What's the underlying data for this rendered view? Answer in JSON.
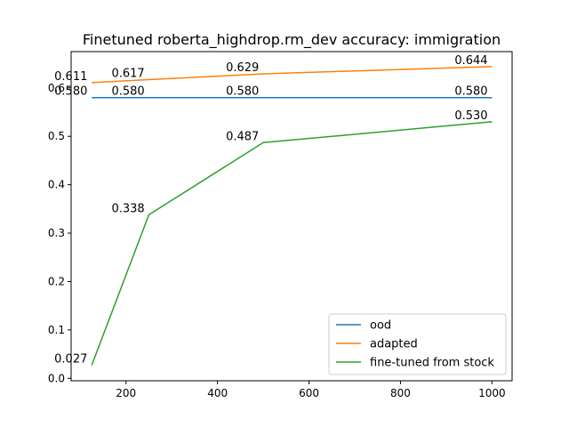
{
  "chart_data": {
    "type": "line",
    "title": "Finetuned roberta_highdrop.rm_dev accuracy: immigration",
    "xlabel": "",
    "ylabel": "",
    "xlim": [
      80,
      1044
    ],
    "ylim": [
      -0.005,
      0.675
    ],
    "x_ticks": [
      200,
      400,
      600,
      800,
      1000
    ],
    "y_ticks": [
      0.0,
      0.1,
      0.2,
      0.3,
      0.4,
      0.5,
      0.6
    ],
    "x_tick_labels": [
      "200",
      "400",
      "600",
      "800",
      "1000"
    ],
    "y_tick_labels": [
      "0.0",
      "0.1",
      "0.2",
      "0.3",
      "0.4",
      "0.5",
      "0.6"
    ],
    "grid": false,
    "legend_position": "lower-right",
    "x": [
      125,
      250,
      500,
      1000
    ],
    "series": [
      {
        "name": "ood",
        "color": "#1f77b4",
        "values": [
          0.58,
          0.58,
          0.58,
          0.58
        ],
        "labels": [
          "0.580",
          "0.580",
          "0.580",
          "0.580"
        ]
      },
      {
        "name": "adapted",
        "color": "#ff7f0e",
        "values": [
          0.611,
          0.617,
          0.629,
          0.644
        ],
        "labels": [
          "0.611",
          "0.617",
          "0.629",
          "0.644"
        ]
      },
      {
        "name": "fine-tuned from stock",
        "color": "#2ca02c",
        "values": [
          0.027,
          0.338,
          0.487,
          0.53
        ],
        "labels": [
          "0.027",
          "0.338",
          "0.487",
          "0.530"
        ]
      }
    ]
  }
}
